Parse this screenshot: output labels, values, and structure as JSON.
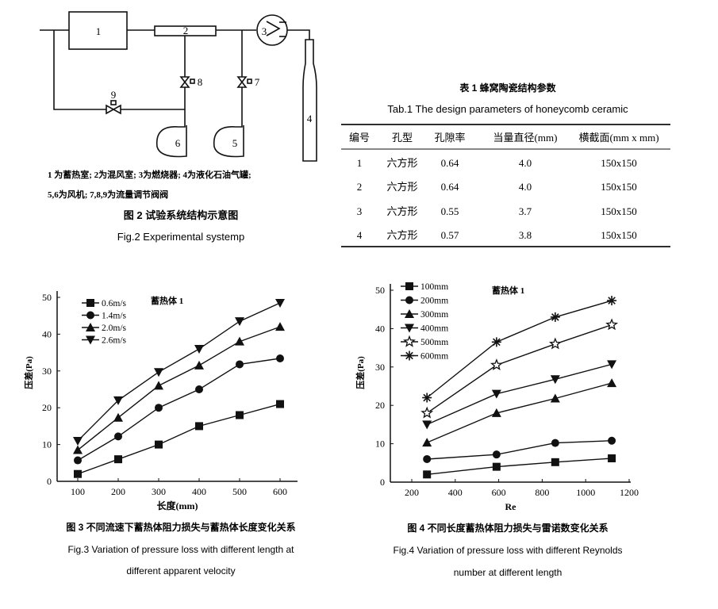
{
  "figure2": {
    "component_labels": [
      "1",
      "2",
      "3",
      "4",
      "5",
      "6",
      "7",
      "8",
      "9"
    ],
    "legend_line1": "1 为蓄热室; 2为混风室; 3为燃烧器; 4为液化石油气罐;",
    "legend_line2": "5,6为风机; 7,8,9为流量调节阀阀",
    "caption_cn": "图 2  试验系统结构示意图",
    "caption_en": "Fig.2 Experimental systemp"
  },
  "table1": {
    "title_cn": "表 1  蜂窝陶瓷结构参数",
    "title_en": "Tab.1 The design parameters of honeycomb ceramic",
    "headers": [
      "编号",
      "孔型",
      "孔隙率",
      "当量直径(mm)",
      "横截面(mm x mm)"
    ],
    "rows": [
      [
        "1",
        "六方形",
        "0.64",
        "4.0",
        "150x150"
      ],
      [
        "2",
        "六方形",
        "0.64",
        "4.0",
        "150x150"
      ],
      [
        "3",
        "六方形",
        "0.55",
        "3.7",
        "150x150"
      ],
      [
        "4",
        "六方形",
        "0.57",
        "3.8",
        "150x150"
      ]
    ]
  },
  "figure3": {
    "caption_cn": "图 3  不同流速下蓄热体阻力损失与蓄热体长度变化关系",
    "caption_en_1": "Fig.3 Variation of pressure loss with different length at",
    "caption_en_2": "different apparent velocity"
  },
  "figure4": {
    "caption_cn": "图 4  不同长度蓄热体阻力损失与雷诺数变化关系",
    "caption_en_1": "Fig.4 Variation of pressure loss with different Reynolds",
    "caption_en_2": "number at different length"
  },
  "chart_data": [
    {
      "type": "line",
      "annotation": "蓄热体 1",
      "xlabel": "长度(mm)",
      "ylabel": "压差(Pa)",
      "xlim": [
        50,
        650
      ],
      "ylim": [
        0,
        50
      ],
      "xticks": [
        100,
        200,
        300,
        400,
        500,
        600
      ],
      "yticks": [
        0,
        10,
        20,
        30,
        40,
        50
      ],
      "grid": false,
      "legend_position": "top-left",
      "x": [
        100,
        200,
        300,
        400,
        500,
        600
      ],
      "series": [
        {
          "name": "0.6m/s",
          "marker": "square",
          "values": [
            2,
            6,
            10,
            15,
            18,
            21
          ]
        },
        {
          "name": "1.4m/s",
          "marker": "circle",
          "values": [
            5.7,
            12.2,
            20,
            25,
            31.8,
            33.4
          ]
        },
        {
          "name": "2.0m/s",
          "marker": "triangle-up",
          "values": [
            8.5,
            17.3,
            26,
            31.5,
            38,
            42
          ]
        },
        {
          "name": "2.6m/s",
          "marker": "triangle-down",
          "values": [
            11,
            22,
            29.7,
            36,
            43.5,
            48.5
          ]
        }
      ]
    },
    {
      "type": "line",
      "annotation": "蓄热体 1",
      "xlabel": "Re",
      "ylabel": "压差(Pa)",
      "xlim": [
        100,
        1220
      ],
      "ylim": [
        0,
        50
      ],
      "xticks": [
        200,
        400,
        600,
        800,
        1000,
        1200
      ],
      "yticks": [
        0,
        10,
        20,
        30,
        40,
        50
      ],
      "grid": false,
      "legend_position": "top-left",
      "x": [
        270,
        590,
        860,
        1120
      ],
      "series": [
        {
          "name": "100mm",
          "marker": "square",
          "values": [
            2,
            4,
            5.2,
            6.2
          ]
        },
        {
          "name": "200mm",
          "marker": "circle",
          "values": [
            6,
            7.2,
            10.2,
            10.8
          ]
        },
        {
          "name": "300mm",
          "marker": "triangle-up",
          "values": [
            10.3,
            18,
            21.8,
            25.8
          ]
        },
        {
          "name": "400mm",
          "marker": "triangle-down",
          "values": [
            15,
            23,
            26.8,
            30.7
          ]
        },
        {
          "name": "500mm",
          "marker": "open-star",
          "values": [
            18,
            30.5,
            36,
            41
          ]
        },
        {
          "name": "600mm",
          "marker": "asterisk",
          "values": [
            22,
            36.5,
            43,
            47.3
          ]
        }
      ]
    }
  ]
}
